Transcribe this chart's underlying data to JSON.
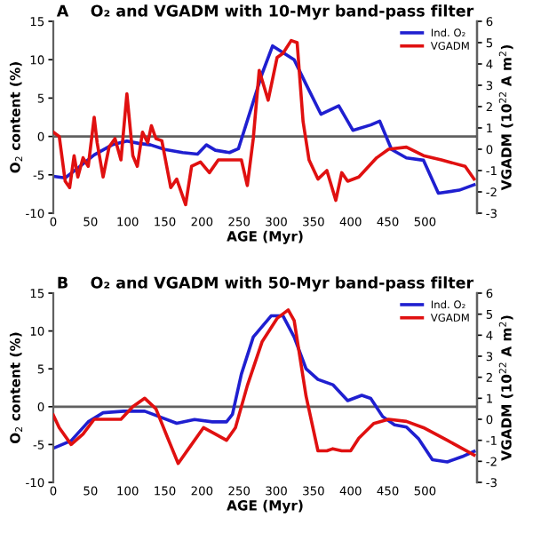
{
  "chart_data": [
    {
      "type": "line",
      "title": "A    O₂ and VGADM with 10-Myr band-pass filter",
      "xlabel": "AGE (Myr)",
      "ylabel": "O$_{2}$ content (%)",
      "y2label": "VGADM (10$^{22}$ A m$^{2}$)",
      "xlim": [
        0,
        570
      ],
      "xticks": [
        0,
        50,
        100,
        150,
        200,
        250,
        300,
        350,
        400,
        450,
        500
      ],
      "ylim": [
        -10,
        15
      ],
      "yticks": [
        -10,
        -5,
        0,
        5,
        10,
        15
      ],
      "y2lim": [
        -3,
        6
      ],
      "y2ticks": [
        -3,
        -2,
        -1,
        0,
        1,
        2,
        3,
        4,
        5,
        6
      ],
      "legend": "top right",
      "ref_lines": [
        {
          "axis": "y",
          "value": 0,
          "color": "#606060"
        }
      ],
      "series": [
        {
          "name": "Ind. O₂",
          "color": "#1f1fd0",
          "x": [
            0,
            16,
            32,
            55,
            79,
            99,
            115,
            131,
            150,
            174,
            194,
            206,
            218,
            237,
            249,
            265,
            281,
            295,
            324,
            340,
            360,
            384,
            403,
            427,
            439,
            455,
            475,
            498,
            518,
            546,
            566
          ],
          "values": [
            -5.2,
            -5.4,
            -4.2,
            -2.4,
            -1.1,
            -0.6,
            -0.9,
            -1.1,
            -1.7,
            -2.1,
            -2.3,
            -1.1,
            -1.8,
            -2.1,
            -1.6,
            3.3,
            8.2,
            11.8,
            10,
            6.8,
            2.9,
            4.0,
            0.8,
            1.5,
            2.0,
            -1.7,
            -2.8,
            -3.1,
            -7.4,
            -7.0,
            -6.3
          ]
        },
        {
          "name": "VGADM",
          "color": "#e01010",
          "axis": "y2",
          "x": [
            0,
            8,
            16,
            22,
            28,
            33,
            40,
            47,
            55,
            59,
            67,
            75,
            83,
            91,
            99,
            107,
            113,
            120,
            127,
            132,
            138,
            146,
            158,
            166,
            178,
            186,
            198,
            210,
            222,
            237,
            253,
            261,
            269,
            277,
            289,
            301,
            309,
            320,
            328,
            336,
            344,
            356,
            368,
            380,
            388,
            396,
            411,
            435,
            451,
            475,
            498,
            522,
            554,
            566
          ],
          "values": [
            0.8,
            0.6,
            -1.5,
            -1.8,
            -0.3,
            -1.3,
            -0.4,
            -0.8,
            1.5,
            0.3,
            -1.3,
            0.1,
            0.5,
            -0.5,
            2.6,
            -0.3,
            -0.8,
            0.8,
            0.3,
            1.1,
            0.5,
            0.4,
            -1.8,
            -1.4,
            -2.6,
            -0.8,
            -0.6,
            -1.1,
            -0.5,
            -0.5,
            -0.5,
            -1.7,
            0.5,
            3.7,
            2.3,
            4.3,
            4.5,
            5.1,
            5.0,
            1.3,
            -0.5,
            -1.4,
            -1.0,
            -2.4,
            -1.1,
            -1.5,
            -1.3,
            -0.4,
            0,
            0.1,
            -0.3,
            -0.5,
            -0.8,
            -1.4
          ]
        }
      ]
    },
    {
      "type": "line",
      "title": "B    O₂ and VGADM with 50-Myr band-pass filter",
      "xlabel": "AGE (Myr)",
      "ylabel": "O$_{2}$ content (%)",
      "y2label": "VGADM (10$^{22}$ A m$^{2}$)",
      "xlim": [
        0,
        570
      ],
      "xticks": [
        0,
        50,
        100,
        150,
        200,
        250,
        300,
        350,
        400,
        450,
        500
      ],
      "ylim": [
        -10,
        15
      ],
      "yticks": [
        -10,
        -5,
        0,
        5,
        10,
        15
      ],
      "y2lim": [
        -3,
        6
      ],
      "y2ticks": [
        -3,
        -2,
        -1,
        0,
        1,
        2,
        3,
        4,
        5,
        6
      ],
      "legend": "top right",
      "ref_lines": [
        {
          "axis": "y",
          "value": 0,
          "color": "#606060"
        }
      ],
      "series": [
        {
          "name": "Ind. O₂",
          "color": "#1f1fd0",
          "x": [
            0,
            24,
            47,
            67,
            95,
            123,
            142,
            166,
            190,
            214,
            233,
            241,
            253,
            269,
            293,
            309,
            324,
            340,
            356,
            376,
            396,
            415,
            427,
            443,
            459,
            475,
            491,
            510,
            530,
            550,
            566
          ],
          "values": [
            -5.5,
            -4.5,
            -2.0,
            -0.8,
            -0.6,
            -0.6,
            -1.3,
            -2.2,
            -1.7,
            -2.0,
            -2.0,
            -1.0,
            4.3,
            9.2,
            12.0,
            12.0,
            9.2,
            5.0,
            3.6,
            2.9,
            0.8,
            1.5,
            1.1,
            -1.3,
            -2.4,
            -2.7,
            -4.2,
            -7.0,
            -7.3,
            -6.6,
            -5.9
          ]
        },
        {
          "name": "VGADM",
          "color": "#e01010",
          "axis": "y2",
          "x": [
            0,
            8,
            24,
            40,
            55,
            75,
            91,
            107,
            123,
            138,
            154,
            168,
            182,
            202,
            218,
            233,
            245,
            261,
            281,
            301,
            316,
            324,
            340,
            356,
            368,
            376,
            388,
            400,
            411,
            431,
            451,
            475,
            498,
            530,
            566
          ],
          "values": [
            0.2,
            -0.4,
            -1.2,
            -0.7,
            0,
            0,
            0,
            0.6,
            1.0,
            0.5,
            -0.9,
            -2.1,
            -1.4,
            -0.4,
            -0.7,
            -1.0,
            -0.4,
            1.6,
            3.7,
            4.8,
            5.2,
            4.7,
            1.1,
            -1.5,
            -1.5,
            -1.4,
            -1.5,
            -1.5,
            -0.9,
            -0.2,
            0,
            -0.1,
            -0.4,
            -1.0,
            -1.7
          ]
        }
      ]
    }
  ]
}
